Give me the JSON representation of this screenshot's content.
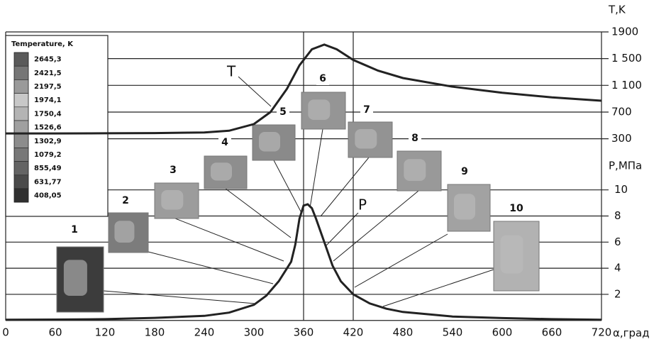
{
  "chart_data": {
    "type": "line",
    "x_label": "α,град",
    "y_label": "P,МПа",
    "y2_label": "T,K",
    "xlim": [
      0,
      720
    ],
    "xticks": [
      0,
      60,
      120,
      180,
      240,
      300,
      360,
      420,
      480,
      540,
      600,
      660,
      720
    ],
    "ylim": [
      0,
      22.1
    ],
    "yticks": [
      2,
      4,
      6,
      8,
      10
    ],
    "y2lim": [
      -2420,
      1900
    ],
    "y2ticks": [
      300,
      700,
      {
        "value": 1100,
        "label": "1 100"
      },
      {
        "value": 1500,
        "label": "1 500"
      },
      1900
    ],
    "grid": true,
    "series": [
      {
        "name": "T",
        "axis": "y2",
        "color": "#222222",
        "x": [
          0,
          60,
          120,
          180,
          240,
          270,
          300,
          320,
          340,
          355,
          370,
          385,
          400,
          420,
          450,
          480,
          540,
          600,
          660,
          720
        ],
        "values": [
          380,
          380,
          382,
          385,
          395,
          420,
          520,
          700,
          1050,
          1400,
          1640,
          1710,
          1640,
          1480,
          1320,
          1210,
          1080,
          990,
          920,
          870
        ]
      },
      {
        "name": "P",
        "color": "#222222",
        "x": [
          0,
          60,
          120,
          180,
          240,
          270,
          300,
          315,
          330,
          340,
          345,
          350,
          355,
          360,
          365,
          370,
          375,
          385,
          395,
          405,
          420,
          440,
          460,
          480,
          540,
          600,
          660,
          720
        ],
        "values": [
          0.05,
          0.07,
          0.1,
          0.2,
          0.35,
          0.6,
          1.2,
          1.9,
          3.0,
          4.0,
          4.5,
          5.8,
          7.8,
          8.8,
          8.9,
          8.6,
          7.8,
          6.0,
          4.2,
          3.0,
          2.0,
          1.3,
          0.9,
          0.65,
          0.3,
          0.18,
          0.1,
          0.05
        ]
      }
    ],
    "scale_title": "Temperature, K",
    "scale_labels": [
      {
        "value": 2645.3,
        "label": "2645,3"
      },
      {
        "value": 2421.5,
        "label": "2421,5"
      },
      {
        "value": 2197.5,
        "label": "2197,5"
      },
      {
        "value": 1974.1,
        "label": "1974,1"
      },
      {
        "value": 1750.4,
        "label": "1750,4"
      },
      {
        "value": 1526.6,
        "label": "1526,6"
      },
      {
        "value": 1302.9,
        "label": "1302,9"
      },
      {
        "value": 1079.2,
        "label": "1079,2"
      },
      {
        "value": 855.49,
        "label": "855,49"
      },
      {
        "value": 631.77,
        "label": "631,77"
      },
      {
        "value": 408.05,
        "label": "408,05"
      }
    ],
    "scale_colors": [
      "#5a5a5a",
      "#767676",
      "#9a9a9a",
      "#c8c8c8",
      "#b4b4b4",
      "#a0a0a0",
      "#8c8c8c",
      "#787878",
      "#646464",
      "#4a4a4a",
      "#303030"
    ],
    "insets": [
      "1",
      "2",
      "3",
      "4",
      "5",
      "6",
      "7",
      "8",
      "9",
      "10"
    ]
  }
}
